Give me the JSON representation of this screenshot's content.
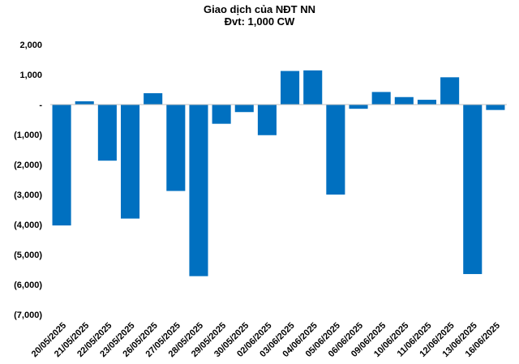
{
  "chart_data": {
    "type": "bar",
    "title": "Giao dịch của NĐT NN",
    "subtitle": "Đvt: 1,000 CW",
    "xlabel": "",
    "ylabel": "",
    "ylim": [
      -7000,
      2000
    ],
    "yticks": [
      2000,
      1000,
      0,
      -1000,
      -2000,
      -3000,
      -4000,
      -5000,
      -6000,
      -7000
    ],
    "ytick_labels": [
      "2,000",
      "1,000",
      "-",
      "(1,000)",
      "(2,000)",
      "(3,000)",
      "(4,000)",
      "(5,000)",
      "(6,000)",
      "(7,000)"
    ],
    "grid": false,
    "legend": "none",
    "bar_color": "#0070C0",
    "categories": [
      "20/05/2025",
      "21/05/2025",
      "22/05/2025",
      "23/05/2025",
      "26/05/2025",
      "27/05/2025",
      "28/05/2025",
      "29/05/2025",
      "30/05/2025",
      "02/06/2025",
      "03/06/2025",
      "04/06/2025",
      "05/06/2025",
      "06/06/2025",
      "09/06/2025",
      "10/06/2025",
      "11/06/2025",
      "12/06/2025",
      "13/06/2025",
      "16/06/2025"
    ],
    "values": [
      -4030,
      110,
      -1870,
      -3800,
      380,
      -2880,
      -5720,
      -640,
      -250,
      -1020,
      1120,
      1140,
      -3000,
      -140,
      420,
      250,
      160,
      910,
      -5650,
      -180
    ]
  }
}
